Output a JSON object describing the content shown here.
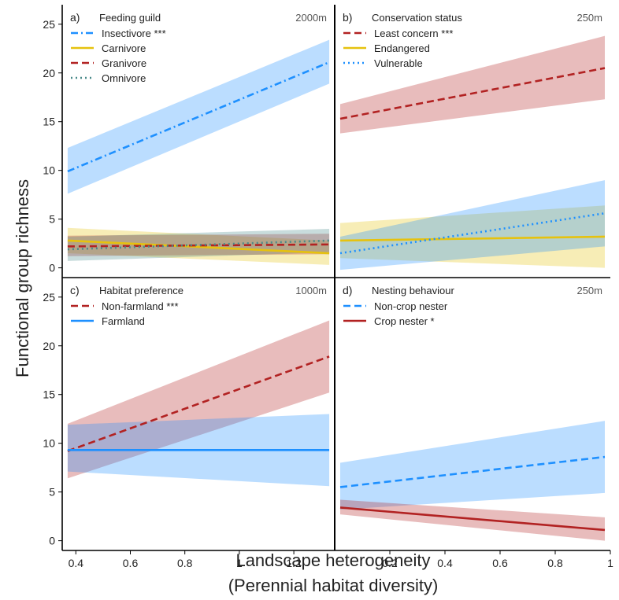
{
  "figure": {
    "ylabel": "Functional group richness",
    "xlabel_line1": "Landscape heterogeneity",
    "xlabel_line2": "(Perennial habitat diversity)"
  },
  "chart_data": [
    {
      "type": "line",
      "panel": "a)",
      "title": "Feeding guild",
      "scale": "2000m",
      "xlim": [
        0.35,
        1.35
      ],
      "ylim": [
        -1,
        27
      ],
      "yticks": [
        0,
        5,
        10,
        15,
        20,
        25
      ],
      "xticks": [
        0.4,
        0.6,
        0.8,
        1.0,
        1.2
      ],
      "series": [
        {
          "name": "Insectivore ***",
          "color": "#1e90ff",
          "dash": "dashdot",
          "x": [
            0.37,
            1.33
          ],
          "y": [
            9.9,
            21.1
          ],
          "lower": [
            7.6,
            18.9
          ],
          "upper": [
            12.3,
            23.4
          ]
        },
        {
          "name": "Carnivore",
          "color": "#e6c20e",
          "dash": "solid",
          "x": [
            0.37,
            1.33
          ],
          "y": [
            2.8,
            1.5
          ],
          "lower": [
            1.5,
            0.3
          ],
          "upper": [
            4.1,
            2.8
          ]
        },
        {
          "name": "Granivore",
          "color": "#b22222",
          "dash": "dashed",
          "x": [
            0.37,
            1.33
          ],
          "y": [
            2.2,
            2.4
          ],
          "lower": [
            1.2,
            1.4
          ],
          "upper": [
            3.3,
            3.5
          ]
        },
        {
          "name": "Omnivore",
          "color": "#4a8a8a",
          "dash": "dotted",
          "x": [
            0.37,
            1.33
          ],
          "y": [
            1.9,
            2.8
          ],
          "lower": [
            0.7,
            1.6
          ],
          "upper": [
            3.2,
            4.0
          ]
        }
      ]
    },
    {
      "type": "line",
      "panel": "b)",
      "title": "Conservation status",
      "scale": "250m",
      "xlim": [
        0.0,
        1.0
      ],
      "ylim": [
        -1,
        27
      ],
      "yticks": [
        0,
        5,
        10,
        15,
        20,
        25
      ],
      "xticks": [
        0.2,
        0.4,
        0.6,
        0.8,
        1.0
      ],
      "series": [
        {
          "name": "Least concern ***",
          "color": "#b22222",
          "dash": "dashed",
          "x": [
            0.02,
            0.98
          ],
          "y": [
            15.3,
            20.5
          ],
          "lower": [
            13.8,
            17.3
          ],
          "upper": [
            16.8,
            23.8
          ]
        },
        {
          "name": "Endangered",
          "color": "#e6c20e",
          "dash": "solid",
          "x": [
            0.02,
            0.98
          ],
          "y": [
            2.8,
            3.2
          ],
          "lower": [
            1.0,
            0.0
          ],
          "upper": [
            4.6,
            6.4
          ]
        },
        {
          "name": "Vulnerable",
          "color": "#1e90ff",
          "dash": "dotted",
          "x": [
            0.02,
            0.98
          ],
          "y": [
            1.5,
            5.6
          ],
          "lower": [
            -0.2,
            2.2
          ],
          "upper": [
            3.2,
            9.0
          ]
        }
      ]
    },
    {
      "type": "line",
      "panel": "c)",
      "title": "Habitat preference",
      "scale": "1000m",
      "xlim": [
        0.35,
        1.35
      ],
      "ylim": [
        -1,
        27
      ],
      "yticks": [
        0,
        5,
        10,
        15,
        20,
        25
      ],
      "xticks": [
        0.4,
        0.6,
        0.8,
        1.0,
        1.2
      ],
      "series": [
        {
          "name": "Non-farmland ***",
          "color": "#b22222",
          "dash": "dashed",
          "x": [
            0.37,
            1.33
          ],
          "y": [
            9.2,
            18.9
          ],
          "lower": [
            6.4,
            15.2
          ],
          "upper": [
            12.0,
            22.6
          ]
        },
        {
          "name": "Farmland",
          "color": "#1e90ff",
          "dash": "solid",
          "x": [
            0.37,
            1.33
          ],
          "y": [
            9.3,
            9.3
          ],
          "lower": [
            7.1,
            5.6
          ],
          "upper": [
            11.9,
            13.0
          ]
        }
      ]
    },
    {
      "type": "line",
      "panel": "d)",
      "title": "Nesting behaviour",
      "scale": "250m",
      "xlim": [
        0.0,
        1.0
      ],
      "ylim": [
        -1,
        27
      ],
      "yticks": [
        0,
        5,
        10,
        15,
        20,
        25
      ],
      "xticks": [
        0.2,
        0.4,
        0.6,
        0.8,
        1.0
      ],
      "series": [
        {
          "name": "Non-crop nester",
          "color": "#1e90ff",
          "dash": "dashed",
          "x": [
            0.02,
            0.98
          ],
          "y": [
            5.5,
            8.6
          ],
          "lower": [
            3.2,
            4.9
          ],
          "upper": [
            8.0,
            12.3
          ]
        },
        {
          "name": "Crop nester *",
          "color": "#b22222",
          "dash": "solid",
          "x": [
            0.02,
            0.98
          ],
          "y": [
            3.4,
            1.1
          ],
          "lower": [
            2.7,
            0.0
          ],
          "upper": [
            4.2,
            2.4
          ]
        }
      ]
    }
  ]
}
